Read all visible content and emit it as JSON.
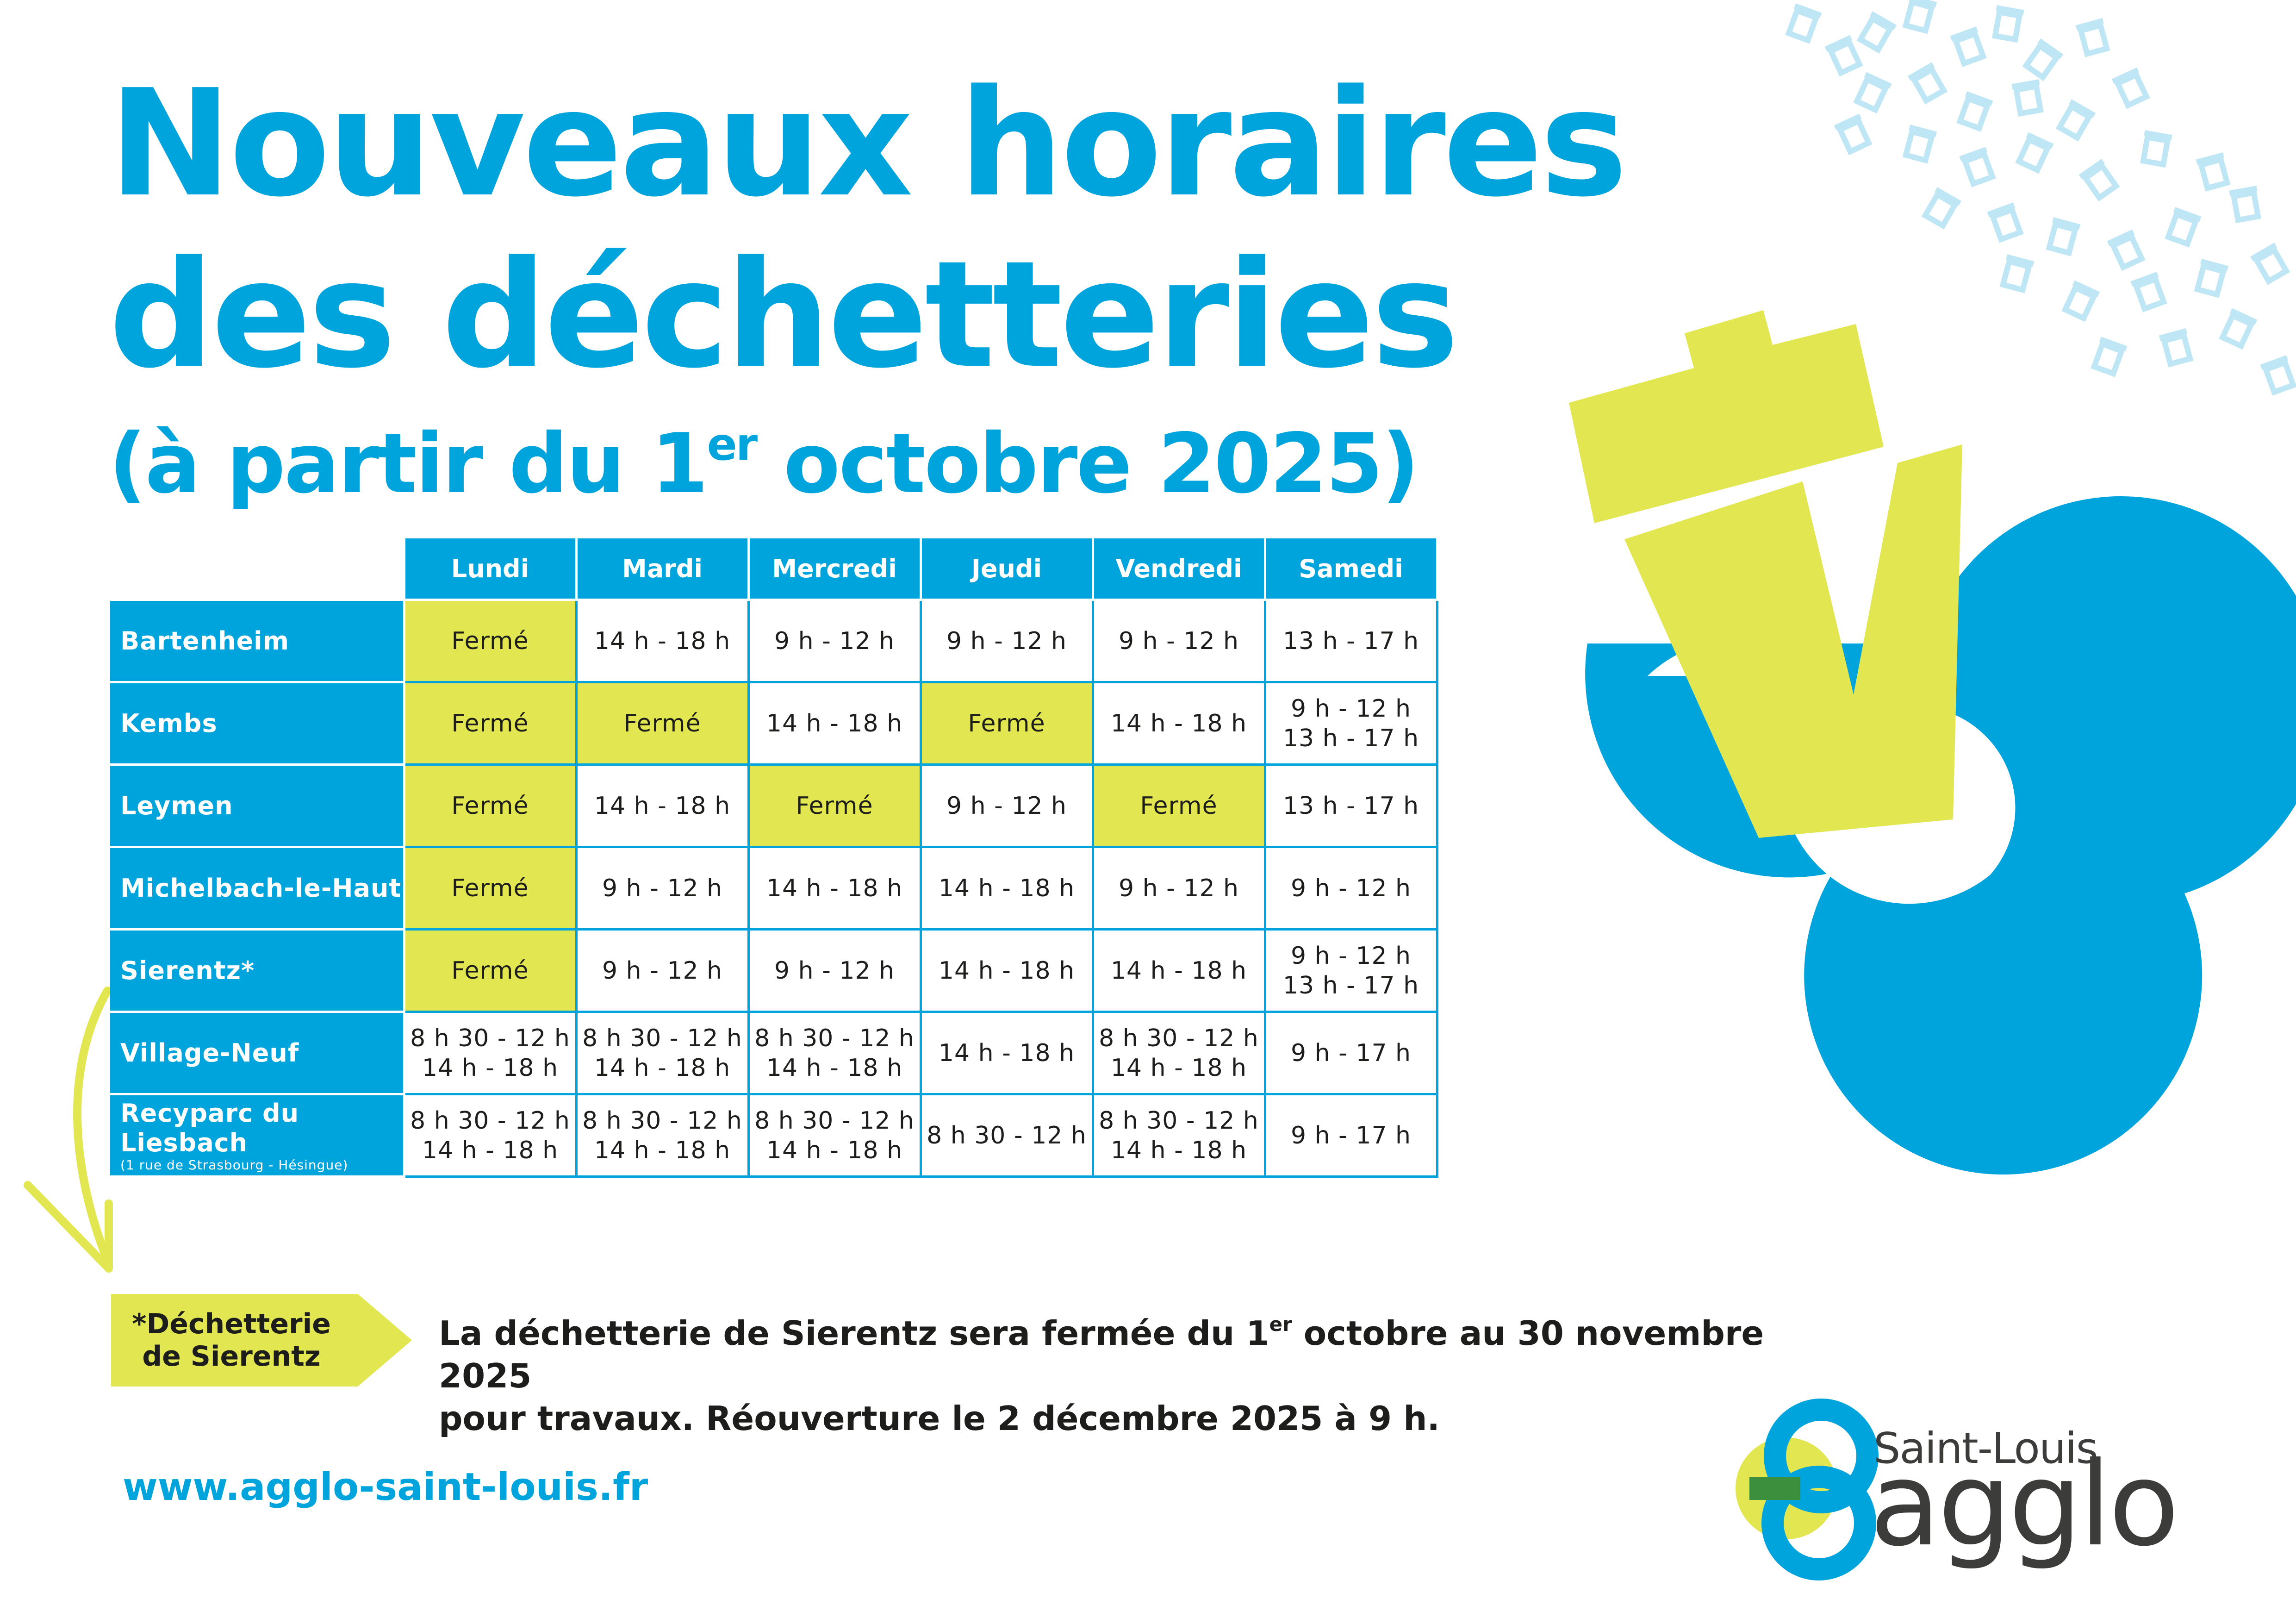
{
  "title": {
    "line1": "Nouveaux horaires",
    "line2": "des déchetteries",
    "line3_prefix": "(à partir du 1",
    "line3_sup": "er",
    "line3_suffix": " octobre 2025)"
  },
  "colors": {
    "blue": "#00a4dc",
    "yellow": "#e1e651",
    "light_blue": "#bfe6f5",
    "text": "#1d1d1b"
  },
  "table": {
    "days": [
      "Lundi",
      "Mardi",
      "Mercredi",
      "Jeudi",
      "Vendredi",
      "Samedi"
    ],
    "rows": [
      {
        "site": "Bartenheim",
        "cells": [
          "Fermé",
          "14 h - 18 h",
          "9 h - 12 h",
          "9 h - 12 h",
          "9 h - 12 h",
          "13 h - 17 h"
        ]
      },
      {
        "site": "Kembs",
        "cells": [
          "Fermé",
          "Fermé",
          "14 h - 18 h",
          "Fermé",
          "14 h - 18 h",
          "9 h - 12 h\n13 h - 17 h"
        ]
      },
      {
        "site": "Leymen",
        "cells": [
          "Fermé",
          "14 h - 18 h",
          "Fermé",
          "9 h - 12 h",
          "Fermé",
          "13 h - 17 h"
        ]
      },
      {
        "site": "Michelbach-le-Haut",
        "cells": [
          "Fermé",
          "9 h - 12 h",
          "14 h - 18 h",
          "14 h - 18 h",
          "9 h - 12 h",
          "9 h - 12 h"
        ]
      },
      {
        "site": "Sierentz*",
        "cells": [
          "Fermé",
          "9 h - 12 h",
          "9 h - 12 h",
          "14 h - 18 h",
          "14 h - 18 h",
          "9 h - 12 h\n13 h - 17 h"
        ]
      },
      {
        "site": "Village-Neuf",
        "cells": [
          "8 h 30 - 12 h\n14 h - 18 h",
          "8 h 30 - 12 h\n14 h - 18 h",
          "8 h 30 - 12 h\n14 h - 18 h",
          "14 h - 18 h",
          "8 h 30 - 12 h\n14 h - 18 h",
          "9 h - 17 h"
        ]
      },
      {
        "site": "Recyparc du Liesbach",
        "address": "(1 rue de Strasbourg - Hésingue)",
        "cells": [
          "8 h 30 - 12 h\n14 h - 18 h",
          "8 h 30 - 12 h\n14 h - 18 h",
          "8 h 30 - 12 h\n14 h - 18 h",
          "8 h 30 - 12 h",
          "8 h 30 - 12 h\n14 h - 18 h",
          "9 h - 17 h"
        ]
      }
    ]
  },
  "footnote": {
    "tag_line1": "*Déchetterie",
    "tag_line2": "de Sierentz",
    "text1_prefix": "La déchetterie de Sierentz sera fermée du 1",
    "text1_sup": "er",
    "text1_suffix": " octobre au 30 novembre 2025",
    "text2": "pour travaux. Réouverture le 2 décembre 2025 à 9 h."
  },
  "website": "www.agglo-saint-louis.fr",
  "logo": {
    "line1": "Saint-Louis",
    "line2": "agglo"
  },
  "icons": [
    "trash-bin-confetti",
    "trash-bin-emblem",
    "arrow-down",
    "agglo-logo-mark"
  ]
}
